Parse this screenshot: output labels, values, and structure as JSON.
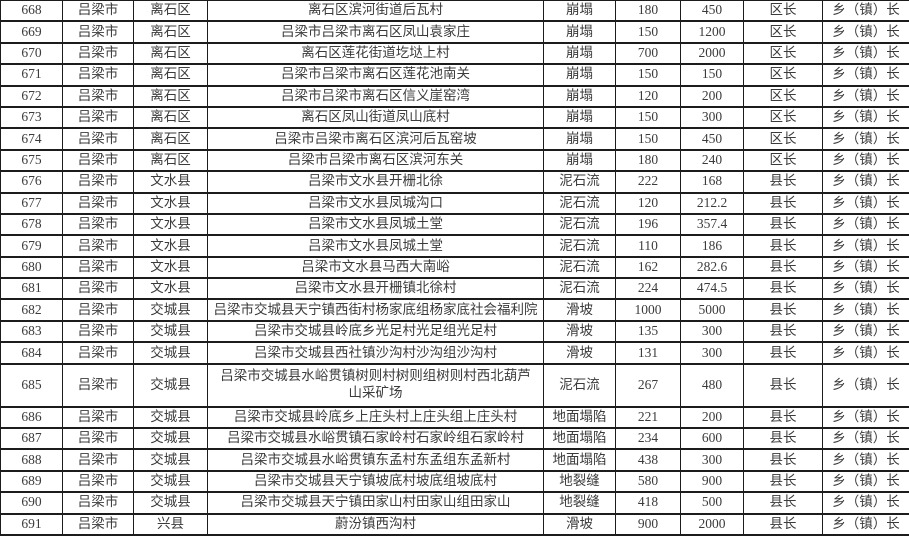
{
  "page": {
    "background_color": "#ffffff",
    "border_color": "#1c1c1c",
    "text_color": "#3b3b3b"
  },
  "table": {
    "rows": [
      {
        "cells": [
          "668",
          "吕梁市",
          "离石区",
          "离石区滨河街道后瓦村",
          "崩塌",
          "180",
          "450",
          "区长",
          "乡（镇）长"
        ],
        "tall": false
      },
      {
        "cells": [
          "669",
          "吕梁市",
          "离石区",
          "吕梁市吕梁市离石区凤山袁家庄",
          "崩塌",
          "150",
          "1200",
          "区长",
          "乡（镇）长"
        ],
        "tall": false
      },
      {
        "cells": [
          "670",
          "吕梁市",
          "离石区",
          "离石区莲花街道圪垯上村",
          "崩塌",
          "700",
          "2000",
          "区长",
          "乡（镇）长"
        ],
        "tall": false
      },
      {
        "cells": [
          "671",
          "吕梁市",
          "离石区",
          "吕梁市吕梁市离石区莲花池南关",
          "崩塌",
          "150",
          "150",
          "区长",
          "乡（镇）长"
        ],
        "tall": false
      },
      {
        "cells": [
          "672",
          "吕梁市",
          "离石区",
          "吕梁市吕梁市离石区信义崖窑湾",
          "崩塌",
          "120",
          "200",
          "区长",
          "乡（镇）长"
        ],
        "tall": false
      },
      {
        "cells": [
          "673",
          "吕梁市",
          "离石区",
          "离石区凤山街道凤山底村",
          "崩塌",
          "150",
          "300",
          "区长",
          "乡（镇）长"
        ],
        "tall": false
      },
      {
        "cells": [
          "674",
          "吕梁市",
          "离石区",
          "吕梁市吕梁市离石区滨河后瓦窑坡",
          "崩塌",
          "150",
          "450",
          "区长",
          "乡（镇）长"
        ],
        "tall": false
      },
      {
        "cells": [
          "675",
          "吕梁市",
          "离石区",
          "吕梁市吕梁市离石区滨河东关",
          "崩塌",
          "180",
          "240",
          "区长",
          "乡（镇）长"
        ],
        "tall": false
      },
      {
        "cells": [
          "676",
          "吕梁市",
          "文水县",
          "吕梁市文水县开栅北徐",
          "泥石流",
          "222",
          "168",
          "县长",
          "乡（镇）长"
        ],
        "tall": false
      },
      {
        "cells": [
          "677",
          "吕梁市",
          "文水县",
          "吕梁市文水县凤城沟口",
          "泥石流",
          "120",
          "212.2",
          "县长",
          "乡（镇）长"
        ],
        "tall": false
      },
      {
        "cells": [
          "678",
          "吕梁市",
          "文水县",
          "吕梁市文水县凤城土堂",
          "泥石流",
          "196",
          "357.4",
          "县长",
          "乡（镇）长"
        ],
        "tall": false
      },
      {
        "cells": [
          "679",
          "吕梁市",
          "文水县",
          "吕梁市文水县凤城土堂",
          "泥石流",
          "110",
          "186",
          "县长",
          "乡（镇）长"
        ],
        "tall": false
      },
      {
        "cells": [
          "680",
          "吕梁市",
          "文水县",
          "吕梁市文水县马西大南峪",
          "泥石流",
          "162",
          "282.6",
          "县长",
          "乡（镇）长"
        ],
        "tall": false
      },
      {
        "cells": [
          "681",
          "吕梁市",
          "文水县",
          "吕梁市文水县开栅镇北徐村",
          "泥石流",
          "224",
          "474.5",
          "县长",
          "乡（镇）长"
        ],
        "tall": false
      },
      {
        "cells": [
          "682",
          "吕梁市",
          "交城县",
          "吕梁市交城县天宁镇西街村杨家底组杨家底社会福利院",
          "滑坡",
          "1000",
          "5000",
          "县长",
          "乡（镇）长"
        ],
        "tall": false
      },
      {
        "cells": [
          "683",
          "吕梁市",
          "交城县",
          "吕梁市交城县岭底乡光足村光足组光足村",
          "滑坡",
          "135",
          "300",
          "县长",
          "乡（镇）长"
        ],
        "tall": false
      },
      {
        "cells": [
          "684",
          "吕梁市",
          "交城县",
          "吕梁市交城县西社镇沙沟村沙沟组沙沟村",
          "滑坡",
          "131",
          "300",
          "县长",
          "乡（镇）长"
        ],
        "tall": false
      },
      {
        "cells": [
          "685",
          "吕梁市",
          "交城县",
          "吕梁市交城县水峪贯镇树则村树则组树则村西北葫芦山采矿场",
          "泥石流",
          "267",
          "480",
          "县长",
          "乡（镇）长"
        ],
        "tall": true
      },
      {
        "cells": [
          "686",
          "吕梁市",
          "交城县",
          "吕梁市交城县岭底乡上庄头村上庄头组上庄头村",
          "地面塌陷",
          "221",
          "200",
          "县长",
          "乡（镇）长"
        ],
        "tall": false
      },
      {
        "cells": [
          "687",
          "吕梁市",
          "交城县",
          "吕梁市交城县水峪贯镇石家岭村石家岭组石家岭村",
          "地面塌陷",
          "234",
          "600",
          "县长",
          "乡（镇）长"
        ],
        "tall": false
      },
      {
        "cells": [
          "688",
          "吕梁市",
          "交城县",
          "吕梁市交城县水峪贯镇东孟村东孟组东孟新村",
          "地面塌陷",
          "438",
          "300",
          "县长",
          "乡（镇）长"
        ],
        "tall": false
      },
      {
        "cells": [
          "689",
          "吕梁市",
          "交城县",
          "吕梁市交城县天宁镇坡底村坡底组坡底村",
          "地裂缝",
          "580",
          "900",
          "县长",
          "乡（镇）长"
        ],
        "tall": false
      },
      {
        "cells": [
          "690",
          "吕梁市",
          "交城县",
          "吕梁市交城县天宁镇田家山村田家山组田家山",
          "地裂缝",
          "418",
          "500",
          "县长",
          "乡（镇）长"
        ],
        "tall": false
      },
      {
        "cells": [
          "691",
          "吕梁市",
          "兴县",
          "蔚汾镇西沟村",
          "滑坡",
          "900",
          "2000",
          "县长",
          "乡（镇）长"
        ],
        "tall": false
      }
    ]
  }
}
